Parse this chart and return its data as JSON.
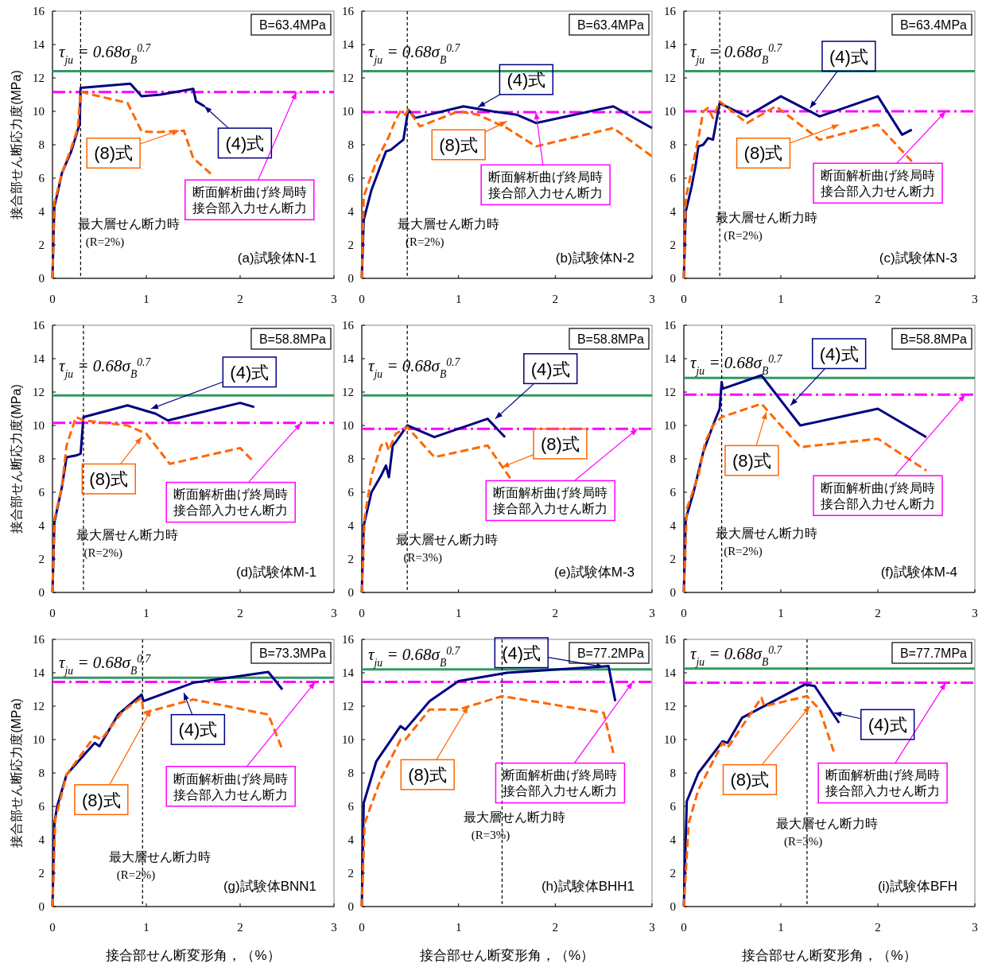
{
  "chart_data": [
    {
      "type": "line",
      "title": "(a)試験体N-1",
      "ylabel": "接合部せん断応力度(MPa)",
      "xlim": [
        0,
        3
      ],
      "ylim": [
        0,
        16
      ],
      "xticks": [
        0,
        1,
        2,
        3
      ],
      "yticks": [
        0,
        2,
        4,
        6,
        8,
        10,
        12,
        14,
        16
      ],
      "grid": false,
      "annotations": [
        "B=63.4MPa",
        "τ$_{ju}$ = 0.68σ$_{B}$$^{0.7}$",
        "最大層せん断力時",
        "(R=2%)"
      ],
      "ref_lines": [
        {
          "axis": "y",
          "value": 12.4,
          "color": "#339966",
          "line_style": "solid"
        },
        {
          "axis": "y",
          "value": 11.15,
          "label": "断面解析曲げ終局時接合部入力せん断力",
          "color": "#ff00ff",
          "line_style": "dashdot"
        },
        {
          "axis": "x",
          "value": 0.3,
          "color": "#000000",
          "line_style": "dashed"
        }
      ],
      "series": [
        {
          "name": "(4)式",
          "color": "#000080",
          "line_style": "solid",
          "x": [
            0,
            0.01,
            0.02,
            0.05,
            0.1,
            0.2,
            0.27,
            0.29,
            0.3,
            0.83,
            0.95,
            1.15,
            1.5,
            1.53,
            1.62
          ],
          "values": [
            0,
            2.5,
            4.3,
            5,
            6.3,
            7.6,
            8.9,
            9.2,
            11.4,
            11.65,
            10.9,
            11.0,
            11.35,
            10.6,
            10.3
          ]
        },
        {
          "name": "(8)式",
          "color": "#ff6600",
          "line_style": "dashed",
          "x": [
            0,
            0.02,
            0.1,
            0.2,
            0.27,
            0.3,
            0.35,
            0.8,
            0.95,
            1.1,
            1.4,
            1.5,
            1.7
          ],
          "values": [
            0,
            4.5,
            6.3,
            7.8,
            9.0,
            11.2,
            11.1,
            10.5,
            8.8,
            8.75,
            8.85,
            7.2,
            6.2
          ]
        }
      ]
    },
    {
      "type": "line",
      "title": "(b)試験体N-2",
      "xlim": [
        0,
        3
      ],
      "ylim": [
        0,
        16
      ],
      "xticks": [
        0,
        1,
        2,
        3
      ],
      "yticks": [
        0,
        2,
        4,
        6,
        8,
        10,
        12,
        14,
        16
      ],
      "grid": false,
      "annotations": [
        "B=63.4MPa",
        "τ$_{ju}$ = 0.68σ$_{B}$$^{0.7}$",
        "最大層せん断力時",
        "(R=2%)"
      ],
      "ref_lines": [
        {
          "axis": "y",
          "value": 12.4,
          "color": "#339966",
          "line_style": "solid"
        },
        {
          "axis": "y",
          "value": 9.95,
          "label": "断面解析曲げ終局時接合部入力せん断力",
          "color": "#ff00ff",
          "line_style": "dashdot"
        },
        {
          "axis": "x",
          "value": 0.47,
          "color": "#000000",
          "line_style": "dashed"
        }
      ],
      "series": [
        {
          "name": "(4)式",
          "color": "#000080",
          "line_style": "solid",
          "x": [
            0,
            0.02,
            0.1,
            0.25,
            0.3,
            0.43,
            0.48,
            0.55,
            1.05,
            1.35,
            1.6,
            1.8,
            2.6,
            3.0
          ],
          "values": [
            0,
            3.5,
            5.3,
            7.6,
            7.7,
            8.3,
            10.1,
            9.6,
            10.3,
            10.0,
            9.8,
            9.3,
            10.3,
            9.0
          ]
        },
        {
          "name": "(8)式",
          "color": "#ff6600",
          "line_style": "dashed",
          "x": [
            0,
            0.02,
            0.15,
            0.28,
            0.35,
            0.4,
            0.45,
            0.48,
            0.6,
            1.0,
            1.2,
            1.5,
            1.8,
            2.6,
            3.0
          ],
          "values": [
            0,
            4.9,
            7.0,
            8.5,
            9.5,
            10.0,
            9.8,
            10.1,
            9.1,
            10.0,
            9.8,
            9.0,
            7.9,
            9.0,
            7.3
          ]
        }
      ]
    },
    {
      "type": "line",
      "title": "(c)試験体N-3",
      "xlim": [
        0,
        3
      ],
      "ylim": [
        0,
        16
      ],
      "xticks": [
        0,
        1,
        2,
        3
      ],
      "yticks": [
        0,
        2,
        4,
        6,
        8,
        10,
        12,
        14,
        16
      ],
      "grid": false,
      "annotations": [
        "B=63.4MPa",
        "τ$_{ju}$ = 0.68σ$_{B}$$^{0.7}$",
        "最大層せん断力時",
        "(R=2%)"
      ],
      "ref_lines": [
        {
          "axis": "y",
          "value": 12.4,
          "color": "#339966",
          "line_style": "solid"
        },
        {
          "axis": "y",
          "value": 10.0,
          "label": "断面解析曲げ終局時接合部入力せん断力",
          "color": "#ff00ff",
          "line_style": "dashdot"
        },
        {
          "axis": "x",
          "value": 0.37,
          "color": "#000000",
          "line_style": "dashed"
        }
      ],
      "series": [
        {
          "name": "(4)式",
          "color": "#000080",
          "line_style": "solid",
          "x": [
            0,
            0.02,
            0.08,
            0.12,
            0.15,
            0.2,
            0.25,
            0.3,
            0.37,
            0.4,
            0.65,
            1.0,
            1.4,
            2.0,
            2.25,
            2.35
          ],
          "values": [
            0,
            4.0,
            5.5,
            6.7,
            7.9,
            8.0,
            8.4,
            8.3,
            10.5,
            10.4,
            9.7,
            10.9,
            9.7,
            10.9,
            8.6,
            8.9
          ]
        },
        {
          "name": "(8)式",
          "color": "#ff6600",
          "line_style": "dashed",
          "x": [
            0,
            0.02,
            0.1,
            0.15,
            0.2,
            0.25,
            0.3,
            0.37,
            0.65,
            0.95,
            1.4,
            2.0,
            2.35
          ],
          "values": [
            0,
            4.8,
            7.0,
            8.4,
            10.0,
            10.2,
            9.6,
            10.6,
            9.3,
            10.3,
            8.3,
            9.2,
            7.0
          ]
        }
      ]
    },
    {
      "type": "line",
      "title": "(d)試験体M-1",
      "ylabel": "接合部せん断応力度(MPa)",
      "xlim": [
        0,
        3
      ],
      "ylim": [
        0,
        16
      ],
      "xticks": [
        0,
        1,
        2,
        3
      ],
      "yticks": [
        0,
        2,
        4,
        6,
        8,
        10,
        12,
        14,
        16
      ],
      "grid": false,
      "annotations": [
        "B=58.8MPa",
        "τ$_{ju}$ = 0.68σ$_{B}$$^{0.7}$",
        "最大層せん断力時",
        "(R=2%)"
      ],
      "ref_lines": [
        {
          "axis": "y",
          "value": 11.8,
          "color": "#339966",
          "line_style": "solid"
        },
        {
          "axis": "y",
          "value": 10.15,
          "label": "断面解析曲げ終局時接合部入力せん断力",
          "color": "#ff00ff",
          "line_style": "dashdot"
        },
        {
          "axis": "x",
          "value": 0.33,
          "color": "#000000",
          "line_style": "dashed"
        }
      ],
      "series": [
        {
          "name": "(4)式",
          "color": "#000080",
          "line_style": "solid",
          "x": [
            0,
            0.02,
            0.1,
            0.15,
            0.25,
            0.3,
            0.33,
            0.8,
            1.1,
            1.23,
            2.0,
            2.15
          ],
          "values": [
            0,
            4.2,
            6.3,
            8.1,
            8.2,
            8.3,
            10.5,
            11.2,
            10.7,
            10.3,
            11.35,
            11.1
          ]
        },
        {
          "name": "(8)式",
          "color": "#ff6600",
          "line_style": "dashed",
          "x": [
            0,
            0.02,
            0.1,
            0.15,
            0.25,
            0.33,
            0.8,
            1.0,
            1.25,
            2.0,
            2.15
          ],
          "values": [
            0,
            4.4,
            6.3,
            8.8,
            10.5,
            10.3,
            10.0,
            9.5,
            7.7,
            8.65,
            7.8
          ]
        }
      ]
    },
    {
      "type": "line",
      "title": "(e)試験体M-3",
      "xlim": [
        0,
        3
      ],
      "ylim": [
        0,
        16
      ],
      "xticks": [
        0,
        1,
        2,
        3
      ],
      "yticks": [
        0,
        2,
        4,
        6,
        8,
        10,
        12,
        14,
        16
      ],
      "grid": false,
      "annotations": [
        "B=58.8MPa",
        "τ$_{ju}$ = 0.68σ$_{B}$$^{0.7}$",
        "最大層せん断力時",
        "(R=3%)"
      ],
      "ref_lines": [
        {
          "axis": "y",
          "value": 11.8,
          "color": "#339966",
          "line_style": "solid"
        },
        {
          "axis": "y",
          "value": 9.8,
          "label": "断面解析曲げ終局時接合部入力せん断力",
          "color": "#ff00ff",
          "line_style": "dashdot"
        },
        {
          "axis": "x",
          "value": 0.47,
          "color": "#000000",
          "line_style": "dashed"
        }
      ],
      "series": [
        {
          "name": "(4)式",
          "color": "#000080",
          "line_style": "solid",
          "x": [
            0,
            0.02,
            0.1,
            0.2,
            0.25,
            0.28,
            0.32,
            0.35,
            0.47,
            0.75,
            1.0,
            1.3,
            1.48
          ],
          "values": [
            0,
            4.0,
            6.0,
            7.0,
            7.6,
            6.9,
            8.8,
            9.0,
            10.0,
            9.3,
            9.8,
            10.4,
            9.3
          ]
        },
        {
          "name": "(8)式",
          "color": "#ff6600",
          "line_style": "dashed",
          "x": [
            0,
            0.03,
            0.1,
            0.2,
            0.25,
            0.28,
            0.35,
            0.47,
            0.75,
            1.3,
            1.55
          ],
          "values": [
            0,
            4.5,
            7.0,
            8.8,
            9.0,
            8.5,
            9.5,
            9.9,
            8.1,
            8.8,
            6.7
          ]
        }
      ]
    },
    {
      "type": "line",
      "title": "(f)試験体M-4",
      "xlim": [
        0,
        3
      ],
      "ylim": [
        0,
        16
      ],
      "xticks": [
        0,
        1,
        2,
        3
      ],
      "yticks": [
        0,
        2,
        4,
        6,
        8,
        10,
        12,
        14,
        16
      ],
      "grid": false,
      "annotations": [
        "B=58.8MPa",
        "τ$_{ju}$ = 0.68σ$_{B}$$^{0.7}$",
        "最大層せん断力時",
        "(R=2%)"
      ],
      "ref_lines": [
        {
          "axis": "y",
          "value": 12.85,
          "color": "#339966",
          "line_style": "solid"
        },
        {
          "axis": "y",
          "value": 11.85,
          "label": "断面解析曲げ終局時接合部入力せん断力",
          "color": "#ff00ff",
          "line_style": "dashdot"
        },
        {
          "axis": "x",
          "value": 0.39,
          "color": "#000000",
          "line_style": "dashed"
        }
      ],
      "series": [
        {
          "name": "(4)式",
          "color": "#000080",
          "line_style": "solid",
          "x": [
            0,
            0.02,
            0.1,
            0.2,
            0.3,
            0.37,
            0.39,
            0.4,
            0.8,
            1.0,
            1.2,
            2.0,
            2.5
          ],
          "values": [
            0,
            4.4,
            6.0,
            8.4,
            10.0,
            11.0,
            12.6,
            12.2,
            13.0,
            11.5,
            10.0,
            11.0,
            9.3
          ]
        },
        {
          "name": "(8)式",
          "color": "#ff6600",
          "line_style": "dashed",
          "x": [
            0,
            0.03,
            0.15,
            0.22,
            0.3,
            0.39,
            0.8,
            1.2,
            2.0,
            2.5
          ],
          "values": [
            0,
            5.0,
            7.0,
            9.0,
            10.0,
            10.5,
            11.3,
            8.7,
            9.2,
            7.3
          ]
        }
      ]
    },
    {
      "type": "line",
      "title": "(g)試験体BNN1",
      "ylabel": "接合部せん断応力度(MPa)",
      "xlabel": "接合部せん断変形角，（%）",
      "xlim": [
        0,
        3
      ],
      "ylim": [
        0,
        16
      ],
      "xticks": [
        0,
        1,
        2,
        3
      ],
      "yticks": [
        0,
        2,
        4,
        6,
        8,
        10,
        12,
        14,
        16
      ],
      "grid": false,
      "annotations": [
        "B=73.3MPa",
        "τ$_{ju}$ = 0.68σ$_{B}$$^{0.7}$",
        "最大層せん断力時",
        "(R=2%)"
      ],
      "ref_lines": [
        {
          "axis": "y",
          "value": 13.7,
          "color": "#339966",
          "line_style": "solid"
        },
        {
          "axis": "y",
          "value": 13.45,
          "label": "断面解析曲げ終局時接合部入力せん断力",
          "color": "#ff00ff",
          "line_style": "dashdot"
        },
        {
          "axis": "x",
          "value": 0.96,
          "color": "#000000",
          "line_style": "dashed"
        }
      ],
      "series": [
        {
          "name": "(4)式",
          "color": "#000080",
          "line_style": "solid",
          "x": [
            0,
            0.02,
            0.05,
            0.15,
            0.45,
            0.5,
            0.7,
            0.95,
            0.97,
            1.5,
            2.3,
            2.45
          ],
          "values": [
            0,
            5.0,
            6.0,
            7.9,
            9.8,
            9.6,
            11.5,
            12.7,
            12.3,
            13.4,
            14.05,
            13.0
          ]
        },
        {
          "name": "(8)式",
          "color": "#ff6600",
          "line_style": "dashed",
          "x": [
            0,
            0.03,
            0.15,
            0.45,
            0.52,
            0.75,
            0.95,
            0.97,
            1.5,
            2.3,
            2.45
          ],
          "values": [
            0,
            5.2,
            7.9,
            10.2,
            10.0,
            11.7,
            12.5,
            11.6,
            12.4,
            11.5,
            9.4
          ]
        }
      ]
    },
    {
      "type": "line",
      "title": "(h)試験体BHH1",
      "xlabel": "接合部せん断変形角，（%）",
      "xlim": [
        0,
        3
      ],
      "ylim": [
        0,
        16
      ],
      "xticks": [
        0,
        1,
        2,
        3
      ],
      "yticks": [
        0,
        2,
        4,
        6,
        8,
        10,
        12,
        14,
        16
      ],
      "grid": false,
      "annotations": [
        "B=77.2MPa",
        "τ$_{ju}$ = 0.68σ$_{B}$$^{0.7}$",
        "最大層せん断力時",
        "(R=3%)"
      ],
      "ref_lines": [
        {
          "axis": "y",
          "value": 14.2,
          "color": "#339966",
          "line_style": "solid"
        },
        {
          "axis": "y",
          "value": 13.45,
          "label": "断面解析曲げ終局時接合部入力せん断力",
          "color": "#ff00ff",
          "line_style": "dashdot"
        },
        {
          "axis": "x",
          "value": 1.45,
          "color": "#000000",
          "line_style": "dashed"
        }
      ],
      "series": [
        {
          "name": "(4)式",
          "color": "#000080",
          "line_style": "solid",
          "x": [
            0,
            0.02,
            0.15,
            0.4,
            0.45,
            0.7,
            1.0,
            1.5,
            2.55,
            2.62
          ],
          "values": [
            0,
            6.2,
            8.7,
            10.8,
            10.6,
            12.3,
            13.5,
            14.0,
            14.4,
            12.3
          ]
        },
        {
          "name": "(8)式",
          "color": "#ff6600",
          "line_style": "dashed",
          "x": [
            0,
            0.03,
            0.2,
            0.4,
            0.45,
            0.7,
            1.0,
            1.45,
            2.5,
            2.6
          ],
          "values": [
            0,
            5.0,
            7.7,
            10.0,
            10.0,
            11.8,
            11.8,
            12.6,
            11.6,
            9.2
          ]
        }
      ]
    },
    {
      "type": "line",
      "title": "(i)試験体BFH",
      "xlabel": "接合部せん断変形角，（%）",
      "xlim": [
        0,
        3
      ],
      "ylim": [
        0,
        16
      ],
      "xticks": [
        0,
        1,
        2,
        3
      ],
      "yticks": [
        0,
        2,
        4,
        6,
        8,
        10,
        12,
        14,
        16
      ],
      "grid": false,
      "annotations": [
        "B=77.7MPa",
        "τ$_{ju}$ = 0.68σ$_{B}$$^{0.7}$",
        "最大層せん断力時",
        "(R=3%)"
      ],
      "ref_lines": [
        {
          "axis": "y",
          "value": 14.25,
          "color": "#339966",
          "line_style": "solid"
        },
        {
          "axis": "y",
          "value": 13.4,
          "label": "断面解析曲げ終局時接合部入力せん断力",
          "color": "#ff00ff",
          "line_style": "dashdot"
        },
        {
          "axis": "x",
          "value": 1.27,
          "color": "#000000",
          "line_style": "dashed"
        }
      ],
      "series": [
        {
          "name": "(4)式",
          "color": "#000080",
          "line_style": "solid",
          "x": [
            0,
            0.03,
            0.15,
            0.4,
            0.45,
            0.6,
            1.25,
            1.35,
            1.6
          ],
          "values": [
            0,
            6.3,
            8.0,
            9.9,
            9.8,
            11.3,
            13.3,
            13.2,
            11.0
          ]
        },
        {
          "name": "(8)式",
          "color": "#ff6600",
          "line_style": "dashed",
          "x": [
            0,
            0.05,
            0.15,
            0.4,
            0.45,
            0.8,
            0.83,
            1.27,
            1.4,
            1.55
          ],
          "values": [
            0,
            5.0,
            7.0,
            9.8,
            9.5,
            12.5,
            12.0,
            12.6,
            11.8,
            9.2
          ]
        }
      ]
    }
  ]
}
